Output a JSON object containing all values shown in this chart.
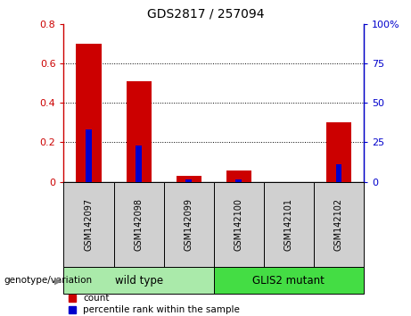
{
  "title": "GDS2817 / 257094",
  "categories": [
    "GSM142097",
    "GSM142098",
    "GSM142099",
    "GSM142100",
    "GSM142101",
    "GSM142102"
  ],
  "red_values": [
    0.7,
    0.51,
    0.03,
    0.055,
    0.0,
    0.3
  ],
  "blue_values_pct": [
    33,
    23,
    1.2,
    1.2,
    0.0,
    11
  ],
  "ylim_left": [
    0,
    0.8
  ],
  "ylim_right": [
    0,
    100
  ],
  "yticks_left": [
    0,
    0.2,
    0.4,
    0.6,
    0.8
  ],
  "yticks_right": [
    0,
    25,
    50,
    75,
    100
  ],
  "left_tick_labels": [
    "0",
    "0.2",
    "0.4",
    "0.6",
    "0.8"
  ],
  "right_tick_labels": [
    "0",
    "25",
    "50",
    "75",
    "100%"
  ],
  "left_color": "#cc0000",
  "right_color": "#0000cc",
  "red_bar_width": 0.5,
  "blue_bar_width": 0.12,
  "wild_type_label": "wild type",
  "mutant_label": "GLIS2 mutant",
  "wild_type_color": "#aaeaaa",
  "mutant_color": "#44dd44",
  "group_label": "genotype/variation",
  "legend_red_label": "count",
  "legend_blue_label": "percentile rank within the sample",
  "tick_area_color": "#d0d0d0",
  "fig_width": 4.61,
  "fig_height": 3.54,
  "dpi": 100
}
